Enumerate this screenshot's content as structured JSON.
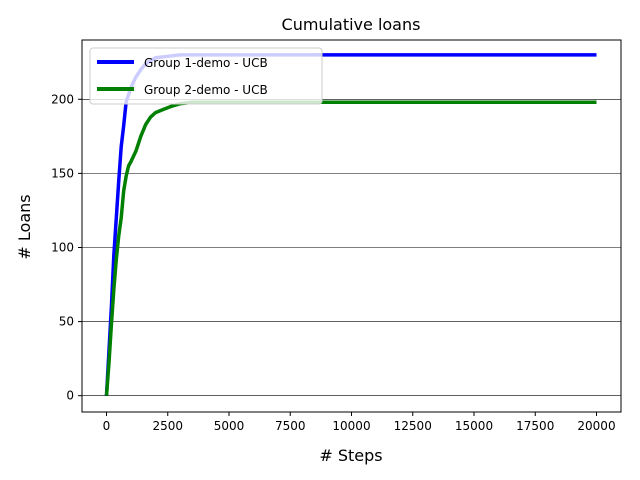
{
  "chart_data": {
    "type": "line",
    "title": "Cumulative loans",
    "xlabel": "# Steps",
    "ylabel": "# Loans",
    "xlim": [
      -1000,
      21000
    ],
    "ylim": [
      -11,
      240
    ],
    "xticks": [
      0,
      2500,
      5000,
      7500,
      10000,
      12500,
      15000,
      17500,
      20000
    ],
    "yticks": [
      0,
      50,
      100,
      150,
      200
    ],
    "grid": "horizontal",
    "legend_position": "upper-left",
    "series": [
      {
        "name": "Group 1-demo - UCB",
        "color": "#0000ff",
        "points": [
          [
            0,
            0
          ],
          [
            100,
            30
          ],
          [
            200,
            60
          ],
          [
            300,
            95
          ],
          [
            400,
            120
          ],
          [
            500,
            145
          ],
          [
            600,
            168
          ],
          [
            700,
            182
          ],
          [
            800,
            198
          ],
          [
            900,
            203
          ],
          [
            1000,
            208
          ],
          [
            1200,
            215
          ],
          [
            1400,
            220
          ],
          [
            1600,
            224
          ],
          [
            1800,
            226
          ],
          [
            2000,
            228
          ],
          [
            2500,
            229
          ],
          [
            3000,
            230
          ],
          [
            5000,
            230
          ],
          [
            10000,
            230
          ],
          [
            15000,
            230
          ],
          [
            20000,
            230
          ]
        ]
      },
      {
        "name": "Group 2-demo - UCB",
        "color": "#008000",
        "points": [
          [
            0,
            0
          ],
          [
            100,
            22
          ],
          [
            200,
            48
          ],
          [
            300,
            72
          ],
          [
            400,
            92
          ],
          [
            500,
            108
          ],
          [
            600,
            120
          ],
          [
            700,
            138
          ],
          [
            800,
            148
          ],
          [
            900,
            155
          ],
          [
            1000,
            158
          ],
          [
            1200,
            165
          ],
          [
            1400,
            175
          ],
          [
            1600,
            183
          ],
          [
            1800,
            188
          ],
          [
            2000,
            191
          ],
          [
            2300,
            193
          ],
          [
            2600,
            195
          ],
          [
            3000,
            197
          ],
          [
            3500,
            198
          ],
          [
            5000,
            198
          ],
          [
            10000,
            198
          ],
          [
            15000,
            198
          ],
          [
            20000,
            198
          ]
        ]
      }
    ]
  }
}
